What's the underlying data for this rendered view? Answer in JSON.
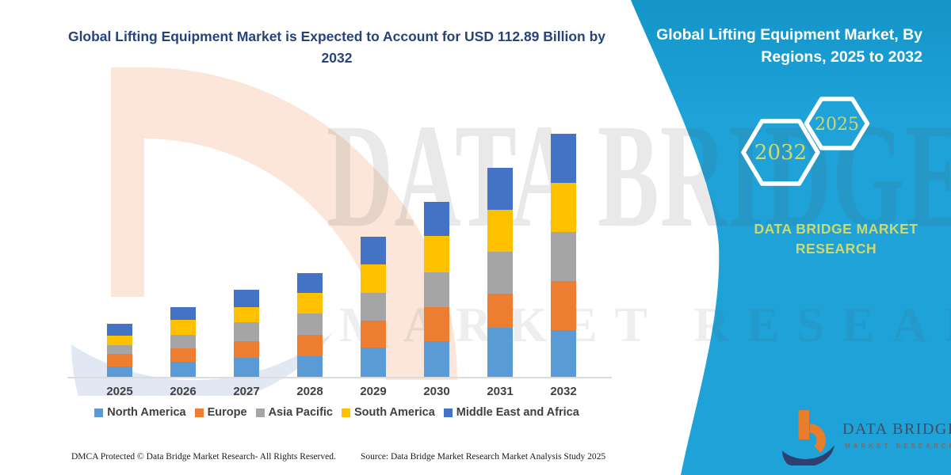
{
  "header": {
    "title": "Global Lifting Equipment Market is Expected to Account for USD 112.89 Billion by 2032"
  },
  "sidebar": {
    "title": "Global Lifting Equipment Market, By Regions, 2025 to 2032",
    "hexagon_large": "2032",
    "hexagon_small": "2025",
    "brand_line1": "DATA BRIDGE MARKET",
    "brand_line2": "RESEARCH"
  },
  "watermark": {
    "line1": "DATA BRIDGE",
    "line2": "MARKET RESEARCH"
  },
  "logo": {
    "title": "DATA BRIDGE",
    "subtitle": "MARKET RESEARCH"
  },
  "footer": {
    "dmca": "DMCA Protected © Data Bridge Market Research-  All Rights Reserved.",
    "source": "Source: Data Bridge Market Research  Market Analysis Study 2025"
  },
  "colors": {
    "panel": "#1EA2D8",
    "accent": "#CDD96F",
    "title_text": "#26437C",
    "axis_text": "#404040"
  },
  "chart_data": {
    "type": "bar",
    "stacked": true,
    "unit": "USD Billion",
    "categories": [
      "2025",
      "2026",
      "2027",
      "2028",
      "2029",
      "2030",
      "2031",
      "2032"
    ],
    "series": [
      {
        "name": "North America",
        "color": "#5B9BD5",
        "values": [
          4.7,
          6.9,
          9.0,
          9.5,
          13.6,
          16.4,
          22.7,
          21.8
        ]
      },
      {
        "name": "Europe",
        "color": "#ED7D31",
        "values": [
          5.8,
          6.4,
          7.4,
          10.1,
          12.6,
          16.0,
          16.0,
          22.8
        ]
      },
      {
        "name": "Asia Pacific",
        "color": "#A5A5A5",
        "values": [
          4.3,
          6.2,
          8.9,
          9.9,
          12.6,
          16.0,
          19.5,
          22.8
        ]
      },
      {
        "name": "South America",
        "color": "#FFC000",
        "values": [
          4.3,
          7.0,
          7.2,
          9.6,
          13.3,
          16.9,
          19.3,
          22.8
        ]
      },
      {
        "name": "Middle East and Africa",
        "color": "#4472C4",
        "values": [
          5.5,
          5.7,
          7.8,
          9.0,
          12.9,
          15.8,
          19.5,
          22.69
        ]
      }
    ],
    "totals": [
      24.6,
      32.2,
      40.3,
      48.1,
      65.0,
      81.1,
      97.0,
      112.89
    ],
    "ylim": [
      0,
      113
    ],
    "y_axis_shown": false,
    "grid": false,
    "legend_position": "bottom"
  }
}
